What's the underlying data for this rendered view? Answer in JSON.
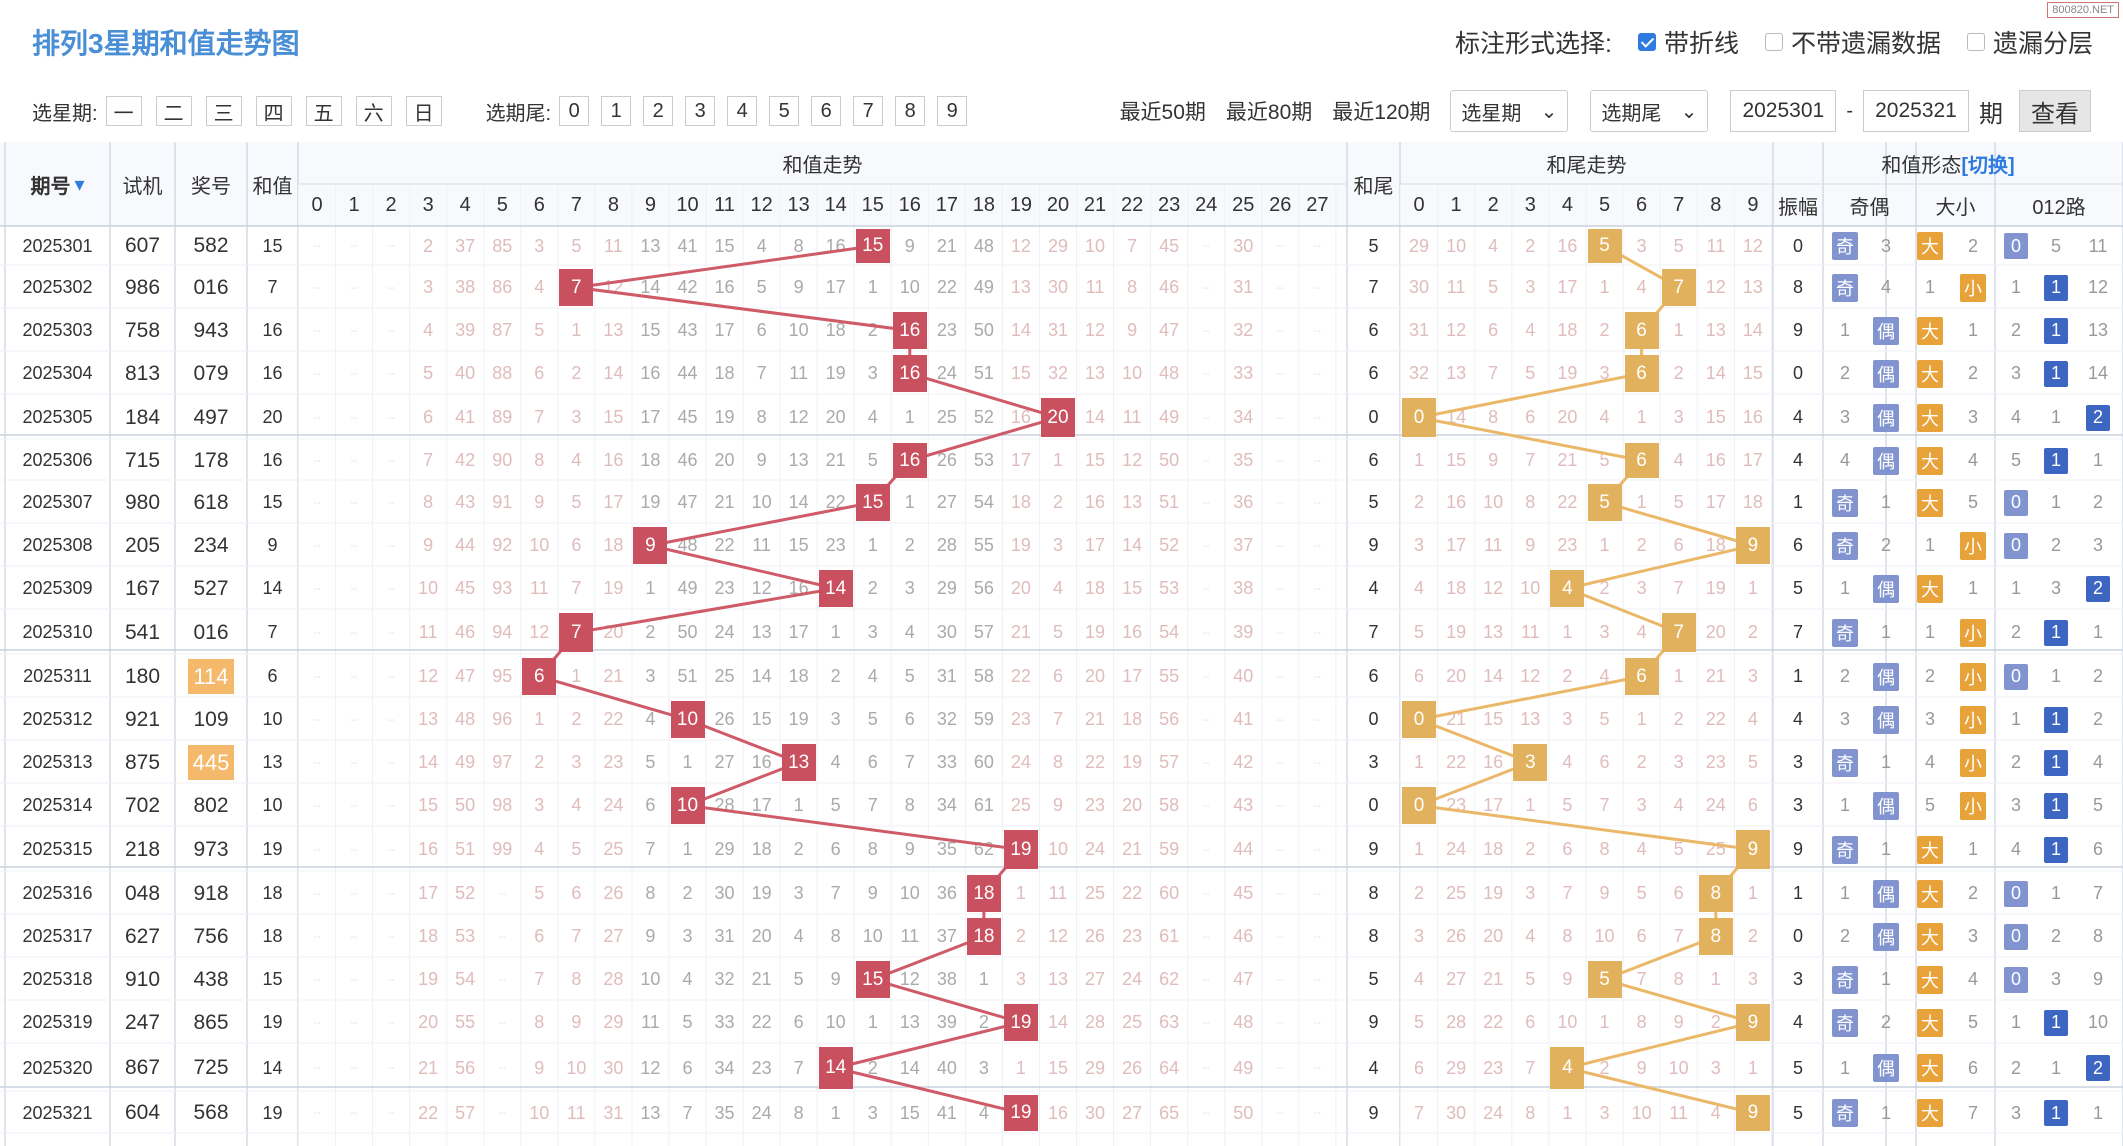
{
  "header": {
    "title": "排列3星期和值走势图",
    "label": "标注形式选择:",
    "opt1": "带折线",
    "opt2": "不带遗漏数据",
    "opt3": "遗漏分层",
    "watermark": "800820.NET"
  },
  "filters": {
    "weekday_label": "选星期:",
    "weekdays": [
      "一",
      "二",
      "三",
      "四",
      "五",
      "六",
      "日"
    ],
    "tail_label": "选期尾:",
    "tails": [
      "0",
      "1",
      "2",
      "3",
      "4",
      "5",
      "6",
      "7",
      "8",
      "9"
    ],
    "ranges": [
      "最近50期",
      "最近80期",
      "最近120期"
    ],
    "sel_week": "选星期",
    "sel_tail": "选期尾",
    "from": "2025301",
    "to": "2025321",
    "dash": "-",
    "period": "期",
    "query": "查看"
  },
  "columns": {
    "issue": "期号",
    "trial": "试机",
    "prize": "奖号",
    "sum": "和值",
    "sum_trend": "和值走势",
    "tail": "和尾",
    "tail_trend": "和尾走势",
    "shape": "和值形态",
    "switch": "[切换]",
    "amp": "振幅",
    "oddeven": "奇偶",
    "bigsmall": "大小",
    "route": "012路"
  },
  "sum_nums": [
    "0",
    "1",
    "2",
    "3",
    "4",
    "5",
    "6",
    "7",
    "8",
    "9",
    "10",
    "11",
    "12",
    "13",
    "14",
    "15",
    "16",
    "17",
    "18",
    "19",
    "20",
    "21",
    "22",
    "23",
    "24",
    "25",
    "26",
    "27"
  ],
  "tail_nums": [
    "0",
    "1",
    "2",
    "3",
    "4",
    "5",
    "6",
    "7",
    "8",
    "9"
  ],
  "chart_data": {
    "type": "table",
    "x": [
      "2025301",
      "2025302",
      "2025303",
      "2025304",
      "2025305",
      "2025306",
      "2025307",
      "2025308",
      "2025309",
      "2025310",
      "2025311",
      "2025312",
      "2025313",
      "2025314",
      "2025315",
      "2025316",
      "2025317",
      "2025318",
      "2025319",
      "2025320",
      "2025321"
    ],
    "trial": [
      "607",
      "986",
      "758",
      "813",
      "184",
      "715",
      "980",
      "205",
      "167",
      "541",
      "180",
      "921",
      "875",
      "702",
      "218",
      "048",
      "627",
      "910",
      "247",
      "867",
      "604"
    ],
    "prize": [
      "582",
      "016",
      "943",
      "079",
      "497",
      "178",
      "618",
      "234",
      "527",
      "016",
      "114",
      "109",
      "445",
      "802",
      "973",
      "918",
      "756",
      "438",
      "865",
      "725",
      "568"
    ],
    "highlight_prize": [
      false,
      false,
      false,
      false,
      false,
      false,
      false,
      false,
      false,
      false,
      true,
      false,
      true,
      false,
      false,
      false,
      false,
      false,
      false,
      false,
      false
    ],
    "sum": [
      15,
      7,
      16,
      16,
      20,
      16,
      15,
      9,
      14,
      7,
      6,
      10,
      13,
      10,
      19,
      18,
      18,
      15,
      19,
      14,
      19
    ],
    "tail": [
      5,
      7,
      6,
      6,
      0,
      6,
      5,
      9,
      4,
      7,
      6,
      0,
      3,
      0,
      9,
      8,
      8,
      5,
      9,
      4,
      9
    ],
    "amp": [
      0,
      8,
      9,
      0,
      4,
      4,
      1,
      6,
      5,
      7,
      1,
      4,
      3,
      3,
      9,
      1,
      0,
      3,
      4,
      5,
      5
    ],
    "oddeven": [
      "奇",
      "奇",
      "偶",
      "偶",
      "偶",
      "偶",
      "奇",
      "奇",
      "偶",
      "奇",
      "偶",
      "偶",
      "奇",
      "偶",
      "奇",
      "偶",
      "偶",
      "奇",
      "奇",
      "偶",
      "奇"
    ],
    "bigsmall": [
      "大",
      "小",
      "大",
      "大",
      "大",
      "大",
      "大",
      "小",
      "大",
      "小",
      "小",
      "小",
      "小",
      "小",
      "大",
      "大",
      "大",
      "大",
      "大",
      "大",
      "大"
    ],
    "route": [
      0,
      1,
      1,
      1,
      2,
      1,
      0,
      0,
      2,
      1,
      0,
      1,
      1,
      1,
      1,
      0,
      0,
      0,
      1,
      2,
      1
    ],
    "sum_miss": [
      [
        "--",
        "--",
        "--",
        "2",
        "37",
        "85",
        "3",
        "5",
        "11",
        "13",
        "41",
        "15",
        "4",
        "8",
        "16",
        "15",
        "9",
        "21",
        "48",
        "12",
        "29",
        "10",
        "7",
        "45",
        "--",
        "30",
        "--",
        "--"
      ],
      [
        "--",
        "--",
        "--",
        "3",
        "38",
        "86",
        "4",
        "7",
        "12",
        "14",
        "42",
        "16",
        "5",
        "9",
        "17",
        "1",
        "10",
        "22",
        "49",
        "13",
        "30",
        "11",
        "8",
        "46",
        "--",
        "31",
        "--",
        "--"
      ],
      [
        "--",
        "--",
        "--",
        "4",
        "39",
        "87",
        "5",
        "1",
        "13",
        "15",
        "43",
        "17",
        "6",
        "10",
        "18",
        "2",
        "16",
        "23",
        "50",
        "14",
        "31",
        "12",
        "9",
        "47",
        "--",
        "32",
        "--",
        "--"
      ],
      [
        "--",
        "--",
        "--",
        "5",
        "40",
        "88",
        "6",
        "2",
        "14",
        "16",
        "44",
        "18",
        "7",
        "11",
        "19",
        "3",
        "16",
        "24",
        "51",
        "15",
        "32",
        "13",
        "10",
        "48",
        "--",
        "33",
        "--",
        "--"
      ],
      [
        "--",
        "--",
        "--",
        "6",
        "41",
        "89",
        "7",
        "3",
        "15",
        "17",
        "45",
        "19",
        "8",
        "12",
        "20",
        "4",
        "1",
        "25",
        "52",
        "16",
        "20",
        "14",
        "11",
        "49",
        "--",
        "34",
        "--",
        "--"
      ],
      [
        "--",
        "--",
        "--",
        "7",
        "42",
        "90",
        "8",
        "4",
        "16",
        "18",
        "46",
        "20",
        "9",
        "13",
        "21",
        "5",
        "16",
        "26",
        "53",
        "17",
        "1",
        "15",
        "12",
        "50",
        "--",
        "35",
        "--",
        "--"
      ],
      [
        "--",
        "--",
        "--",
        "8",
        "43",
        "91",
        "9",
        "5",
        "17",
        "19",
        "47",
        "21",
        "10",
        "14",
        "22",
        "15",
        "1",
        "27",
        "54",
        "18",
        "2",
        "16",
        "13",
        "51",
        "--",
        "36",
        "--",
        "--"
      ],
      [
        "--",
        "--",
        "--",
        "9",
        "44",
        "92",
        "10",
        "6",
        "18",
        "9",
        "48",
        "22",
        "11",
        "15",
        "23",
        "1",
        "2",
        "28",
        "55",
        "19",
        "3",
        "17",
        "14",
        "52",
        "--",
        "37",
        "--",
        "--"
      ],
      [
        "--",
        "--",
        "--",
        "10",
        "45",
        "93",
        "11",
        "7",
        "19",
        "1",
        "49",
        "23",
        "12",
        "16",
        "14",
        "2",
        "3",
        "29",
        "56",
        "20",
        "4",
        "18",
        "15",
        "53",
        "--",
        "38",
        "--",
        "--"
      ],
      [
        "--",
        "--",
        "--",
        "11",
        "46",
        "94",
        "12",
        "7",
        "20",
        "2",
        "50",
        "24",
        "13",
        "17",
        "1",
        "3",
        "4",
        "30",
        "57",
        "21",
        "5",
        "19",
        "16",
        "54",
        "--",
        "39",
        "--",
        "--"
      ],
      [
        "--",
        "--",
        "--",
        "12",
        "47",
        "95",
        "6",
        "1",
        "21",
        "3",
        "51",
        "25",
        "14",
        "18",
        "2",
        "4",
        "5",
        "31",
        "58",
        "22",
        "6",
        "20",
        "17",
        "55",
        "--",
        "40",
        "--",
        "--"
      ],
      [
        "--",
        "--",
        "--",
        "13",
        "48",
        "96",
        "1",
        "2",
        "22",
        "4",
        "10",
        "26",
        "15",
        "19",
        "3",
        "5",
        "6",
        "32",
        "59",
        "23",
        "7",
        "21",
        "18",
        "56",
        "--",
        "41",
        "--",
        "--"
      ],
      [
        "--",
        "--",
        "--",
        "14",
        "49",
        "97",
        "2",
        "3",
        "23",
        "5",
        "1",
        "27",
        "16",
        "13",
        "4",
        "6",
        "7",
        "33",
        "60",
        "24",
        "8",
        "22",
        "19",
        "57",
        "--",
        "42",
        "--",
        "--"
      ],
      [
        "--",
        "--",
        "--",
        "15",
        "50",
        "98",
        "3",
        "4",
        "24",
        "6",
        "10",
        "28",
        "17",
        "1",
        "5",
        "7",
        "8",
        "34",
        "61",
        "25",
        "9",
        "23",
        "20",
        "58",
        "--",
        "43",
        "--",
        "--"
      ],
      [
        "--",
        "--",
        "--",
        "16",
        "51",
        "99",
        "4",
        "5",
        "25",
        "7",
        "1",
        "29",
        "18",
        "2",
        "6",
        "8",
        "9",
        "35",
        "62",
        "19",
        "10",
        "24",
        "21",
        "59",
        "--",
        "44",
        "--",
        "--"
      ],
      [
        "--",
        "--",
        "--",
        "17",
        "52",
        "--",
        "5",
        "6",
        "26",
        "8",
        "2",
        "30",
        "19",
        "3",
        "7",
        "9",
        "10",
        "36",
        "18",
        "1",
        "11",
        "25",
        "22",
        "60",
        "--",
        "45",
        "--",
        "--"
      ],
      [
        "--",
        "--",
        "--",
        "18",
        "53",
        "--",
        "6",
        "7",
        "27",
        "9",
        "3",
        "31",
        "20",
        "4",
        "8",
        "10",
        "11",
        "37",
        "18",
        "2",
        "12",
        "26",
        "23",
        "61",
        "--",
        "46",
        "--",
        "--"
      ],
      [
        "--",
        "--",
        "--",
        "19",
        "54",
        "--",
        "7",
        "8",
        "28",
        "10",
        "4",
        "32",
        "21",
        "5",
        "9",
        "15",
        "12",
        "38",
        "1",
        "3",
        "13",
        "27",
        "24",
        "62",
        "--",
        "47",
        "--",
        "--"
      ],
      [
        "--",
        "--",
        "--",
        "20",
        "55",
        "--",
        "8",
        "9",
        "29",
        "11",
        "5",
        "33",
        "22",
        "6",
        "10",
        "1",
        "13",
        "39",
        "2",
        "19",
        "14",
        "28",
        "25",
        "63",
        "--",
        "48",
        "--",
        "--"
      ],
      [
        "--",
        "--",
        "--",
        "21",
        "56",
        "--",
        "9",
        "10",
        "30",
        "12",
        "6",
        "34",
        "23",
        "7",
        "14",
        "2",
        "14",
        "40",
        "3",
        "1",
        "15",
        "29",
        "26",
        "64",
        "--",
        "49",
        "--",
        "--"
      ],
      [
        "--",
        "--",
        "--",
        "22",
        "57",
        "--",
        "10",
        "11",
        "31",
        "13",
        "7",
        "35",
        "24",
        "8",
        "1",
        "3",
        "15",
        "41",
        "4",
        "19",
        "16",
        "30",
        "27",
        "65",
        "--",
        "50",
        "--",
        "--"
      ]
    ],
    "tail_miss": [
      [
        "29",
        "10",
        "4",
        "2",
        "16",
        "5",
        "3",
        "5",
        "11",
        "12"
      ],
      [
        "30",
        "11",
        "5",
        "3",
        "17",
        "1",
        "4",
        "7",
        "12",
        "13"
      ],
      [
        "31",
        "12",
        "6",
        "4",
        "18",
        "2",
        "6",
        "1",
        "13",
        "14"
      ],
      [
        "32",
        "13",
        "7",
        "5",
        "19",
        "3",
        "6",
        "2",
        "14",
        "15"
      ],
      [
        "0",
        "14",
        "8",
        "6",
        "20",
        "4",
        "1",
        "3",
        "15",
        "16"
      ],
      [
        "1",
        "15",
        "9",
        "7",
        "21",
        "5",
        "6",
        "4",
        "16",
        "17"
      ],
      [
        "2",
        "16",
        "10",
        "8",
        "22",
        "5",
        "1",
        "5",
        "17",
        "18"
      ],
      [
        "3",
        "17",
        "11",
        "9",
        "23",
        "1",
        "2",
        "6",
        "18",
        "9"
      ],
      [
        "4",
        "18",
        "12",
        "10",
        "4",
        "2",
        "3",
        "7",
        "19",
        "1"
      ],
      [
        "5",
        "19",
        "13",
        "11",
        "1",
        "3",
        "4",
        "7",
        "20",
        "2"
      ],
      [
        "6",
        "20",
        "14",
        "12",
        "2",
        "4",
        "6",
        "1",
        "21",
        "3"
      ],
      [
        "0",
        "21",
        "15",
        "13",
        "3",
        "5",
        "1",
        "2",
        "22",
        "4"
      ],
      [
        "1",
        "22",
        "16",
        "3",
        "4",
        "6",
        "2",
        "3",
        "23",
        "5"
      ],
      [
        "0",
        "23",
        "17",
        "1",
        "5",
        "7",
        "3",
        "4",
        "24",
        "6"
      ],
      [
        "1",
        "24",
        "18",
        "2",
        "6",
        "8",
        "4",
        "5",
        "25",
        "9"
      ],
      [
        "2",
        "25",
        "19",
        "3",
        "7",
        "9",
        "5",
        "6",
        "8",
        "1"
      ],
      [
        "3",
        "26",
        "20",
        "4",
        "8",
        "10",
        "6",
        "7",
        "8",
        "2"
      ],
      [
        "4",
        "27",
        "21",
        "5",
        "9",
        "5",
        "7",
        "8",
        "1",
        "3"
      ],
      [
        "5",
        "28",
        "22",
        "6",
        "10",
        "1",
        "8",
        "9",
        "2",
        "9"
      ],
      [
        "6",
        "29",
        "23",
        "7",
        "4",
        "2",
        "9",
        "10",
        "3",
        "1"
      ],
      [
        "7",
        "30",
        "24",
        "8",
        "1",
        "3",
        "10",
        "11",
        "4",
        "9"
      ]
    ],
    "odd_miss": [
      [
        "3"
      ],
      [
        "4"
      ],
      [
        "1"
      ],
      [
        "2"
      ],
      [
        "3"
      ],
      [
        "4"
      ],
      [
        "1"
      ],
      [
        "2"
      ],
      [
        "1"
      ],
      [
        "1"
      ],
      [
        "2"
      ],
      [
        "3"
      ],
      [
        "1"
      ],
      [
        "1"
      ],
      [
        "1"
      ],
      [
        "1"
      ],
      [
        "2"
      ],
      [
        "1"
      ],
      [
        "2"
      ],
      [
        "1"
      ],
      [
        "1"
      ]
    ],
    "big_miss": [
      [
        "2"
      ],
      [
        "1"
      ],
      [
        "1"
      ],
      [
        "2"
      ],
      [
        "3"
      ],
      [
        "4"
      ],
      [
        "5"
      ],
      [
        "1"
      ],
      [
        "1"
      ],
      [
        "1"
      ],
      [
        "2"
      ],
      [
        "3"
      ],
      [
        "4"
      ],
      [
        "5"
      ],
      [
        "1"
      ],
      [
        "2"
      ],
      [
        "3"
      ],
      [
        "4"
      ],
      [
        "5"
      ],
      [
        "6"
      ],
      [
        "7"
      ]
    ],
    "route_miss": [
      [
        "5",
        "11"
      ],
      [
        "1",
        "12"
      ],
      [
        "2",
        "13"
      ],
      [
        "3",
        "14"
      ],
      [
        "4",
        "1"
      ],
      [
        "5",
        "1"
      ],
      [
        "1",
        "2"
      ],
      [
        "2",
        "3"
      ],
      [
        "1",
        "3"
      ],
      [
        "2",
        "1"
      ],
      [
        "1",
        "2"
      ],
      [
        "1",
        "2"
      ],
      [
        "2",
        "4"
      ],
      [
        "3",
        "5"
      ],
      [
        "4",
        "6"
      ],
      [
        "1",
        "7"
      ],
      [
        "2",
        "8"
      ],
      [
        "3",
        "9"
      ],
      [
        "1",
        "10"
      ],
      [
        "2",
        "1"
      ],
      [
        "3",
        "1"
      ]
    ],
    "colors": {
      "sum_ball": "#c9505e",
      "tail_ball": "#e2b15e",
      "odd_even": "#8294cf",
      "big_small": "#e8a23a",
      "route": "#3d66c2",
      "header_blue": "#4a8fd6"
    }
  }
}
